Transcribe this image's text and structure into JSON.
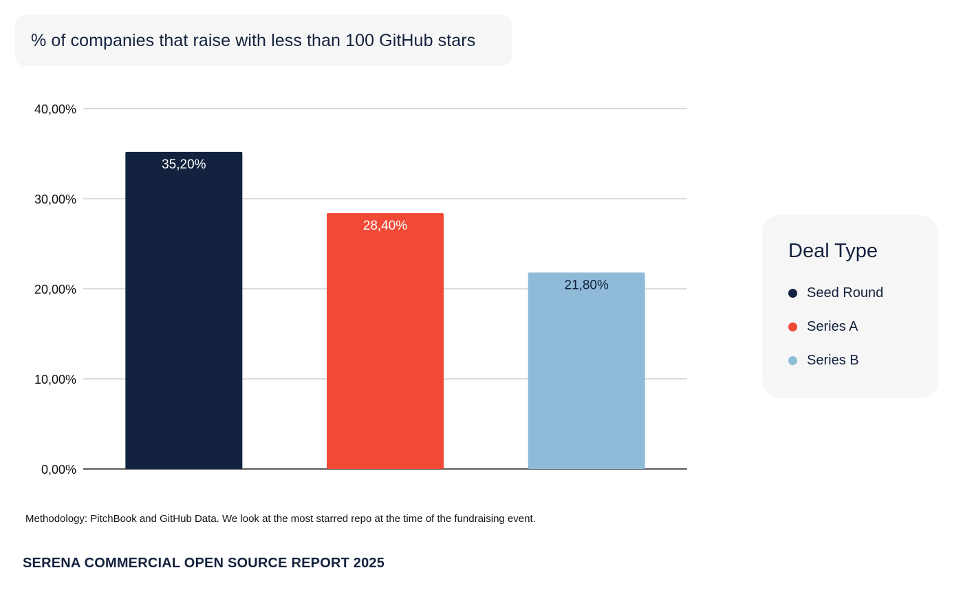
{
  "chart_data": {
    "type": "bar",
    "title": "% of companies that raise with less than 100 GitHub stars",
    "categories": [
      "Seed Round",
      "Series A",
      "Series B"
    ],
    "values": [
      35.2,
      28.4,
      21.8
    ],
    "value_labels": [
      "35,20%",
      "28,40%",
      "21,80%"
    ],
    "colors": [
      "#13233f",
      "#f04a37",
      "#8fbbd9"
    ],
    "label_colors": [
      "#ffffff",
      "#ffffff",
      "#13213d"
    ],
    "ylim": [
      0,
      40
    ],
    "yticks": [
      0,
      10,
      20,
      30,
      40
    ],
    "ytick_labels": [
      "0,00%",
      "10,00%",
      "20,00%",
      "30,00%",
      "40,00%"
    ],
    "grid": true,
    "legend": {
      "title": "Deal Type",
      "placement": "right",
      "entries": [
        "Seed Round",
        "Series A",
        "Series B"
      ]
    }
  },
  "methodology": "Methodology: PitchBook and GitHub Data. We look at the most starred repo at the time of the fundraising event.",
  "footer": "SERENA COMMERCIAL OPEN SOURCE  REPORT  2025"
}
